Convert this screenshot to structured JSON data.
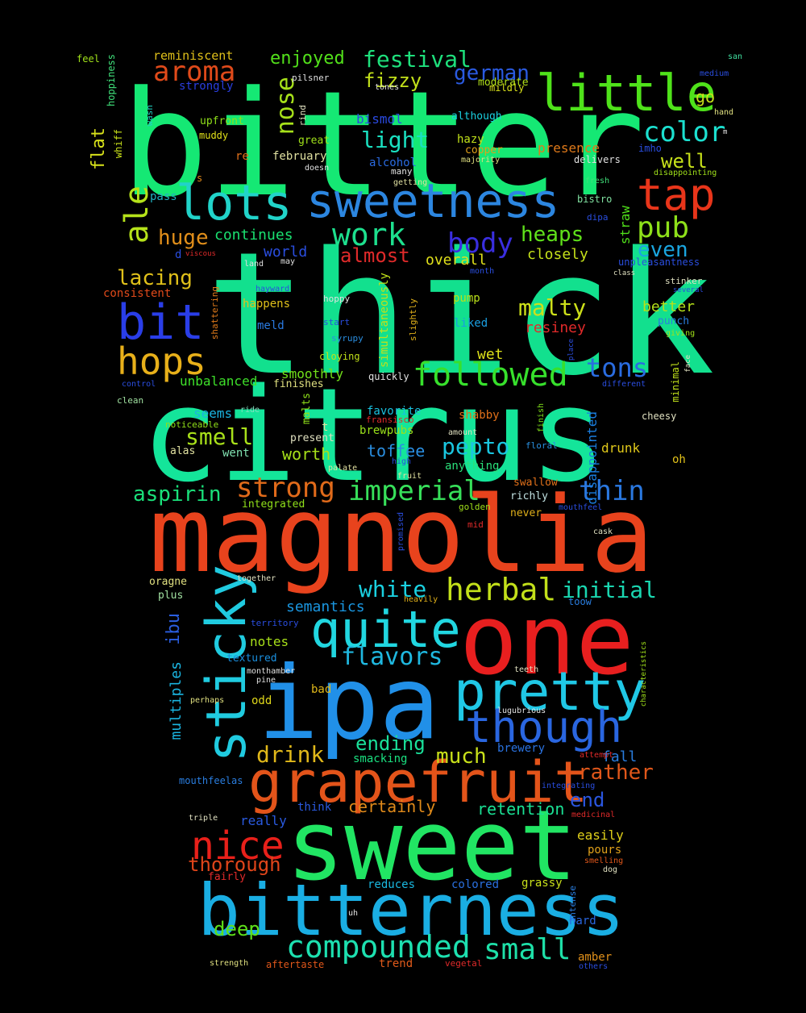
{
  "words": [
    {
      "text": "thick",
      "color": "#12e08e"
    },
    {
      "text": "bitter",
      "color": "#15e874"
    },
    {
      "text": "citrus",
      "color": "#14e59a"
    },
    {
      "text": "magnolia",
      "color": "#e8431d"
    },
    {
      "text": "sweet",
      "color": "#21e563"
    },
    {
      "text": "one",
      "color": "#e81f1f"
    },
    {
      "text": "ipa",
      "color": "#2190e8"
    },
    {
      "text": "bitterness",
      "color": "#1aaee3"
    },
    {
      "text": "sticky",
      "color": "#20cbe0"
    },
    {
      "text": "grapefruit",
      "color": "#e3541a"
    },
    {
      "text": "pretty",
      "color": "#20c8e6"
    },
    {
      "text": "quite",
      "color": "#21d6e0"
    },
    {
      "text": "sweetness",
      "color": "#2c86e0"
    },
    {
      "text": "lots",
      "color": "#21d3c9"
    },
    {
      "text": "little",
      "color": "#4fe21a"
    },
    {
      "text": "though",
      "color": "#2a66e0"
    },
    {
      "text": "tap",
      "color": "#e8351a"
    },
    {
      "text": "bit",
      "color": "#2a3ee8"
    },
    {
      "text": "hops",
      "color": "#e8b01a"
    },
    {
      "text": "nice",
      "color": "#e8201a"
    },
    {
      "text": "ale",
      "color": "#b5e21a"
    },
    {
      "text": "followed",
      "color": "#37e02c"
    },
    {
      "text": "compounded",
      "color": "#1de0b0"
    },
    {
      "text": "herbal",
      "color": "#c3e01a"
    },
    {
      "text": "small",
      "color": "#1ee0a8"
    },
    {
      "text": "work",
      "color": "#1de08e"
    },
    {
      "text": "strong",
      "color": "#e06a1a"
    },
    {
      "text": "imperial",
      "color": "#37e05a"
    },
    {
      "text": "body",
      "color": "#3a2ee0"
    },
    {
      "text": "aroma",
      "color": "#e04a1a"
    },
    {
      "text": "color",
      "color": "#1ce0d0"
    },
    {
      "text": "pub",
      "color": "#8ee01a"
    },
    {
      "text": "tons",
      "color": "#2a6ce0"
    },
    {
      "text": "thin",
      "color": "#2a78e0"
    },
    {
      "text": "white",
      "color": "#1ad0e0"
    },
    {
      "text": "initial",
      "color": "#1ad6b0"
    },
    {
      "text": "flavors",
      "color": "#1fb8e0"
    },
    {
      "text": "nose",
      "color": "#a6e01a"
    },
    {
      "text": "smell",
      "color": "#a8e01a"
    },
    {
      "text": "pepto",
      "color": "#1ac6e0"
    },
    {
      "text": "malty",
      "color": "#cde01a"
    },
    {
      "text": "festival",
      "color": "#1ee07c"
    },
    {
      "text": "thorough",
      "color": "#e0451a"
    },
    {
      "text": "drink",
      "color": "#e0b81a"
    },
    {
      "text": "much",
      "color": "#c8e01a"
    },
    {
      "text": "rather",
      "color": "#e0571a"
    },
    {
      "text": "deep",
      "color": "#5ee01a"
    },
    {
      "text": "ending",
      "color": "#1ae09a"
    },
    {
      "text": "end",
      "color": "#2a56e0"
    },
    {
      "text": "heaps",
      "color": "#5fe01a"
    },
    {
      "text": "even",
      "color": "#1aa6e0"
    },
    {
      "text": "light",
      "color": "#1ae0c0"
    },
    {
      "text": "fizzy",
      "color": "#c2e01a"
    },
    {
      "text": "german",
      "color": "#2a5ae0"
    },
    {
      "text": "well",
      "color": "#c6e01a"
    },
    {
      "text": "huge",
      "color": "#e08e1a"
    },
    {
      "text": "lacing",
      "color": "#e0c01a"
    },
    {
      "text": "almost",
      "color": "#e02a2a"
    },
    {
      "text": "aspirin",
      "color": "#1ae07a"
    },
    {
      "text": "flat",
      "color": "#d6e01a"
    },
    {
      "text": "ibu",
      "color": "#2a5ee0"
    },
    {
      "text": "multiples",
      "color": "#1ab4e0"
    },
    {
      "text": "enjoyed",
      "color": "#52e01a"
    },
    {
      "text": "certainly",
      "color": "#e08a1a"
    },
    {
      "text": "retention",
      "color": "#1ae094"
    },
    {
      "text": "toffee",
      "color": "#2a8ee0"
    },
    {
      "text": "worth",
      "color": "#a6e01a"
    },
    {
      "text": "closely",
      "color": "#c4e01a"
    },
    {
      "text": "better",
      "color": "#b4e01a"
    },
    {
      "text": "overall",
      "color": "#e0e01a"
    },
    {
      "text": "world",
      "color": "#2a4ee0"
    },
    {
      "text": "continues",
      "color": "#1ae070"
    },
    {
      "text": "go",
      "color": "#c8e01a"
    },
    {
      "text": "resiney",
      "color": "#e02a2a"
    },
    {
      "text": "semantics",
      "color": "#1a96e0"
    },
    {
      "text": "fall",
      "color": "#2a7ee0"
    },
    {
      "text": "easily",
      "color": "#e0d01a"
    },
    {
      "text": "pours",
      "color": "#e0a01a"
    },
    {
      "text": "straw",
      "color": "#50e01a"
    },
    {
      "text": "disappointed",
      "color": "#1a7ee0"
    },
    {
      "text": "presence",
      "color": "#e07a1a"
    },
    {
      "text": "smoothly",
      "color": "#72e01a"
    },
    {
      "text": "bismol",
      "color": "#2a4ae0"
    },
    {
      "text": "alcohol",
      "color": "#2a6ae0"
    },
    {
      "text": "wet",
      "color": "#dce01a"
    },
    {
      "text": "unbalanced",
      "color": "#3ee02a"
    },
    {
      "text": "seems",
      "color": "#1ab4e0"
    },
    {
      "text": "really",
      "color": "#2a5ae0"
    },
    {
      "text": "notes",
      "color": "#a8e01a"
    },
    {
      "text": "happens",
      "color": "#e0c01a"
    },
    {
      "text": "brewpubs",
      "color": "#9ae01a"
    },
    {
      "text": "pump",
      "color": "#bae01a"
    },
    {
      "text": "liked",
      "color": "#1a9ee0"
    },
    {
      "text": "meld",
      "color": "#2a7ae0"
    },
    {
      "text": "favorite",
      "color": "#1ac2e0"
    },
    {
      "text": "drunk",
      "color": "#e0c81a"
    },
    {
      "text": "anything",
      "color": "#2ae07a"
    },
    {
      "text": "colored",
      "color": "#2a70e0"
    },
    {
      "text": "reduces",
      "color": "#1ab8e0"
    },
    {
      "text": "hard",
      "color": "#2a66e0"
    },
    {
      "text": "trend",
      "color": "#e05a1a"
    },
    {
      "text": "amber",
      "color": "#e0901a"
    },
    {
      "text": "grassy",
      "color": "#c8e01a"
    },
    {
      "text": "think",
      "color": "#2a5ae0"
    },
    {
      "text": "brewery",
      "color": "#2a72e0"
    },
    {
      "text": "smacking",
      "color": "#1ae080"
    },
    {
      "text": "bad",
      "color": "#e0b81a"
    },
    {
      "text": "odd",
      "color": "#e0d81a"
    },
    {
      "text": "textured",
      "color": "#1a90e0"
    },
    {
      "text": "consistent",
      "color": "#e04a1a"
    },
    {
      "text": "reminiscent",
      "color": "#e0c01a"
    },
    {
      "text": "strongly",
      "color": "#2a3ee0"
    },
    {
      "text": "upfront",
      "color": "#90e01a"
    },
    {
      "text": "muddy",
      "color": "#e0e01a"
    },
    {
      "text": "february",
      "color": "#e0e0a0"
    },
    {
      "text": "great",
      "color": "#a0e01a"
    },
    {
      "text": "although",
      "color": "#1ad0e0"
    },
    {
      "text": "hazy",
      "color": "#c0e01a"
    },
    {
      "text": "copper",
      "color": "#e0a01a"
    },
    {
      "text": "moderate",
      "color": "#b0e01a"
    },
    {
      "text": "mildly",
      "color": "#d8e01a"
    },
    {
      "text": "pilsner",
      "color": "#e0e0e0"
    },
    {
      "text": "rind",
      "color": "#e0e0c0"
    },
    {
      "text": "feel",
      "color": "#a0e01a"
    },
    {
      "text": "hoppiness",
      "color": "#40e07a"
    },
    {
      "text": "whiff",
      "color": "#c8e01a"
    },
    {
      "text": "wasn",
      "color": "#20d0c0"
    },
    {
      "text": "pass",
      "color": "#20b0c0"
    },
    {
      "text": "re",
      "color": "#e0701a"
    },
    {
      "text": "s",
      "color": "#e08a1a"
    },
    {
      "text": "d",
      "color": "#2a4ee0"
    },
    {
      "text": "t",
      "color": "#e0e0a0"
    },
    {
      "text": "simultaneously",
      "color": "#c0e01a"
    },
    {
      "text": "slightly",
      "color": "#e0b01a"
    },
    {
      "text": "shattering",
      "color": "#e07a1a"
    },
    {
      "text": "hoppy",
      "color": "#e0e0e0"
    },
    {
      "text": "start",
      "color": "#2a4ee0"
    },
    {
      "text": "syrupy",
      "color": "#2a8ee0"
    },
    {
      "text": "cloying",
      "color": "#c0e01a"
    },
    {
      "text": "quickly",
      "color": "#e0e0e0"
    },
    {
      "text": "finishes",
      "color": "#e0e080"
    },
    {
      "text": "malts",
      "color": "#90e01a"
    },
    {
      "text": "present",
      "color": "#e0e0c0"
    },
    {
      "text": "went",
      "color": "#80e0b0"
    },
    {
      "text": "alas",
      "color": "#e0e0a0"
    },
    {
      "text": "clean",
      "color": "#a0e0a0"
    },
    {
      "text": "control",
      "color": "#2a4ee0"
    },
    {
      "text": "noticeable",
      "color": "#90e01a"
    },
    {
      "text": "ride",
      "color": "#80e0c0"
    },
    {
      "text": "integrated",
      "color": "#90e01a"
    },
    {
      "text": "fransisco",
      "color": "#e02a2a"
    },
    {
      "text": "amount",
      "color": "#e0e0c0"
    },
    {
      "text": "shabby",
      "color": "#e0701a"
    },
    {
      "text": "high",
      "color": "#2a4ee0"
    },
    {
      "text": "fruit",
      "color": "#e0e0a0"
    },
    {
      "text": "palate",
      "color": "#e0e0a0"
    },
    {
      "text": "floral",
      "color": "#2a90e0"
    },
    {
      "text": "swallow",
      "color": "#e0701a"
    },
    {
      "text": "golden",
      "color": "#a0e01a"
    },
    {
      "text": "richly",
      "color": "#c0e0e0"
    },
    {
      "text": "mouthfeel",
      "color": "#2a4ee0"
    },
    {
      "text": "never",
      "color": "#e0b01a"
    },
    {
      "text": "mid",
      "color": "#e02a2a"
    },
    {
      "text": "promised",
      "color": "#2a4ee0"
    },
    {
      "text": "cask",
      "color": "#e0e0c0"
    },
    {
      "text": "finish",
      "color": "#80e01a"
    },
    {
      "text": "minimal",
      "color": "#c0e01a"
    },
    {
      "text": "cheesy",
      "color": "#e0e0c0"
    },
    {
      "text": "oh",
      "color": "#e0c01a"
    },
    {
      "text": "different",
      "color": "#2a4ee0"
    },
    {
      "text": "place",
      "color": "#2a4ee0"
    },
    {
      "text": "face",
      "color": "#e0e0c0"
    },
    {
      "text": "giving",
      "color": "#a0e01a"
    },
    {
      "text": "punch",
      "color": "#2a7ee0"
    },
    {
      "text": "several",
      "color": "#2a4ee0"
    },
    {
      "text": "stinker",
      "color": "#e0e0c0"
    },
    {
      "text": "class",
      "color": "#e0e0c0"
    },
    {
      "text": "unpleasantness",
      "color": "#2a4ee0"
    },
    {
      "text": "dipa",
      "color": "#2a4ee0"
    },
    {
      "text": "bistro",
      "color": "#80e0a0"
    },
    {
      "text": "fresh",
      "color": "#40e07a"
    },
    {
      "text": "disappointing",
      "color": "#a0e01a"
    },
    {
      "text": "imho",
      "color": "#2a4ee0"
    },
    {
      "text": "delivers",
      "color": "#e0e0e0"
    },
    {
      "text": "majority",
      "color": "#e0e080"
    },
    {
      "text": "many",
      "color": "#e0e0e0"
    },
    {
      "text": "getting",
      "color": "#e0e0a0"
    },
    {
      "text": "doesn",
      "color": "#e0e0e0"
    },
    {
      "text": "tones",
      "color": "#e0e0e0"
    },
    {
      "text": "san",
      "color": "#40e0a0"
    },
    {
      "text": "medium",
      "color": "#2a4ee0"
    },
    {
      "text": "hand",
      "color": "#e0e080"
    },
    {
      "text": "m",
      "color": "#e0e0e0"
    },
    {
      "text": "viscous",
      "color": "#e02a2a"
    },
    {
      "text": "land",
      "color": "#e0e0e0"
    },
    {
      "text": "may",
      "color": "#e0e0e0"
    },
    {
      "text": "hayward",
      "color": "#2a4ee0"
    },
    {
      "text": "month",
      "color": "#2a4ee0"
    },
    {
      "text": "together",
      "color": "#e0e0c0"
    },
    {
      "text": "heavily",
      "color": "#e0b01a"
    },
    {
      "text": "toow",
      "color": "#2a7ee0"
    },
    {
      "text": "territory",
      "color": "#2a4ee0"
    },
    {
      "text": "oragne",
      "color": "#e0e080"
    },
    {
      "text": "plus",
      "color": "#a0e0a0"
    },
    {
      "text": "monthamber",
      "color": "#e0e0e0"
    },
    {
      "text": "pine",
      "color": "#e0e0e0"
    },
    {
      "text": "perhaps",
      "color": "#e0e080"
    },
    {
      "text": "teeth",
      "color": "#e0e0c0"
    },
    {
      "text": "lugubrious",
      "color": "#e0e0e0"
    },
    {
      "text": "characteristics",
      "color": "#a0e01a"
    },
    {
      "text": "attempt",
      "color": "#e02a2a"
    },
    {
      "text": "mouthfeelas",
      "color": "#2a7ee0"
    },
    {
      "text": "integrating",
      "color": "#2a4ee0"
    },
    {
      "text": "triple",
      "color": "#e0e0c0"
    },
    {
      "text": "medicinal",
      "color": "#e02a2a"
    },
    {
      "text": "fairly",
      "color": "#e02a2a"
    },
    {
      "text": "smelling",
      "color": "#e0571a"
    },
    {
      "text": "dog",
      "color": "#e0e0c0"
    },
    {
      "text": "intense",
      "color": "#2a7ee0"
    },
    {
      "text": "uh",
      "color": "#e0e0e0"
    },
    {
      "text": "strength",
      "color": "#e0e080"
    },
    {
      "text": "aftertaste",
      "color": "#e0571a"
    },
    {
      "text": "vegetal",
      "color": "#e02a2a"
    },
    {
      "text": "others",
      "color": "#2a4ee0"
    }
  ]
}
